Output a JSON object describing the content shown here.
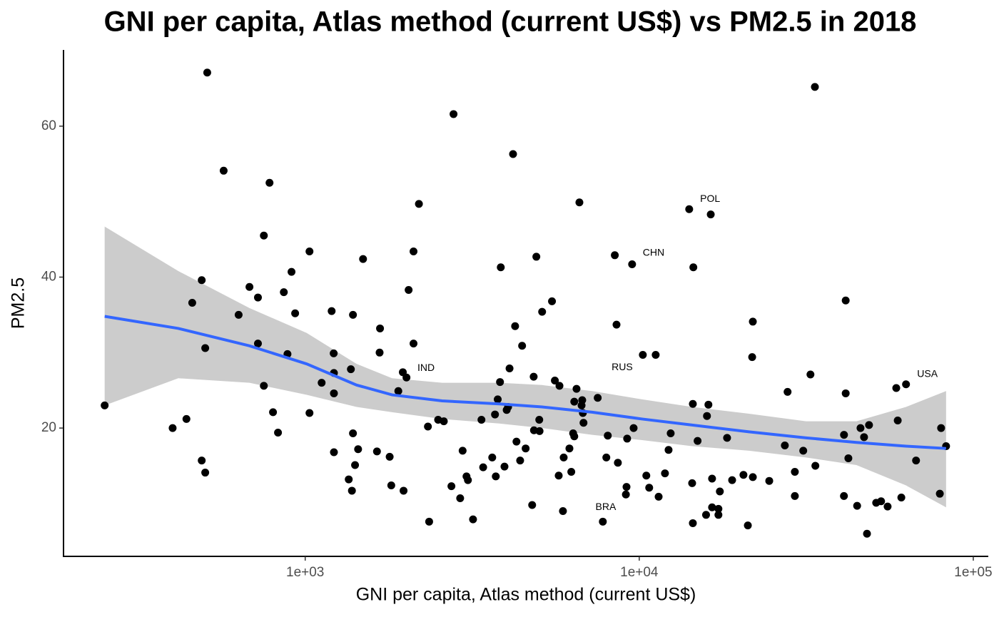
{
  "chart_data": {
    "type": "scatter",
    "title": "GNI per capita, Atlas method (current US$) vs PM2.5 in 2018",
    "x_label": "GNI per capita, Atlas method (current US$)",
    "y_label": "PM2.5",
    "log_x": true,
    "xlim": [
      189,
      110900
    ],
    "ylim": [
      3,
      70.1
    ],
    "xticks": [
      {
        "value": 1000,
        "label": "1e+03"
      },
      {
        "value": 10000,
        "label": "1e+04"
      },
      {
        "value": 100000,
        "label": "1e+05"
      }
    ],
    "yticks": [
      20,
      40,
      60
    ],
    "point_color": "#000000",
    "points": {
      "x": [
        251,
        509,
        570,
        782,
        752,
        490,
        459,
        502,
        632,
        681,
        722,
        722,
        910,
        863,
        933,
        885,
        752,
        1030,
        801,
        1030,
        401,
        441,
        829,
        490,
        502,
        1200,
        1217,
        1120,
        1219,
        1219,
        1370,
        1390,
        1490,
        1675,
        1670,
        2040,
        2110,
        2190,
        2110,
        1960,
        2010,
        1900,
        1219,
        1390,
        1440,
        1410,
        1350,
        1380,
        1640,
        1790,
        1810,
        1970,
        2330,
        2500,
        2600,
        2350,
        2780,
        2960,
        2740,
        2910,
        3040,
        3070,
        3180,
        3370,
        4190,
        3850,
        4250,
        4460,
        4090,
        3830,
        3770,
        3700,
        4010,
        4050,
        4920,
        5480,
        5120,
        4830,
        5020,
        4840,
        5030,
        4290,
        4570,
        4400,
        3950,
        3630,
        3410,
        3720,
        4780,
        5590,
        5770,
        6620,
        6490,
        6390,
        6750,
        6720,
        6780,
        6810,
        7510,
        6180,
        6390,
        6340,
        5940,
        5740,
        6260,
        5910,
        8450,
        9520,
        8550,
        10250,
        11200,
        8050,
        9620,
        9200,
        7970,
        8630,
        9160,
        9120,
        7780,
        10500,
        10710,
        11430,
        11940,
        12240,
        12420,
        14110,
        16370,
        14520,
        14470,
        14950,
        14400,
        14470,
        16110,
        15950,
        18320,
        16520,
        17430,
        16520,
        17260,
        15850,
        17260,
        18970,
        20510,
        21880,
        21140,
        21880,
        21780,
        24500,
        27800,
        27280,
        29230,
        29230,
        30970,
        32550,
        33560,
        33670,
        41500,
        41500,
        41020,
        42270,
        41000,
        44900,
        45960,
        48740,
        47100,
        48060,
        51200,
        52970,
        55400,
        58800,
        62900,
        59400,
        60900,
        67400,
        80100,
        82900,
        79400
      ],
      "y": [
        23.0,
        67.1,
        54.1,
        52.5,
        45.5,
        39.6,
        36.6,
        30.6,
        35.0,
        38.7,
        37.3,
        31.2,
        40.7,
        38.0,
        35.2,
        29.8,
        25.6,
        43.4,
        22.1,
        22.0,
        20.0,
        21.2,
        19.4,
        15.7,
        14.1,
        35.5,
        29.9,
        26.0,
        27.3,
        24.6,
        27.8,
        35.0,
        42.4,
        33.2,
        30.0,
        38.3,
        43.4,
        49.7,
        31.2,
        27.4,
        26.7,
        24.9,
        16.8,
        19.3,
        17.2,
        15.1,
        13.2,
        11.7,
        16.9,
        16.2,
        12.4,
        11.7,
        20.2,
        21.1,
        20.9,
        7.6,
        61.6,
        17.0,
        12.3,
        10.7,
        13.6,
        13.1,
        7.9,
        21.1,
        56.3,
        41.3,
        33.5,
        30.9,
        27.9,
        26.1,
        23.8,
        21.8,
        22.4,
        22.8,
        42.7,
        36.8,
        35.4,
        26.8,
        21.1,
        19.7,
        19.6,
        18.2,
        17.3,
        15.7,
        14.9,
        16.1,
        14.8,
        13.6,
        9.8,
        26.3,
        25.6,
        49.9,
        25.2,
        23.5,
        23.7,
        23.0,
        22.0,
        20.7,
        24.0,
        17.3,
        18.9,
        19.3,
        16.1,
        13.7,
        14.2,
        9.0,
        42.9,
        41.7,
        33.7,
        29.7,
        29.7,
        19.0,
        20.0,
        18.6,
        16.1,
        15.4,
        12.2,
        11.2,
        7.6,
        13.7,
        12.1,
        10.9,
        14.0,
        17.1,
        19.3,
        49.0,
        48.3,
        41.3,
        23.2,
        18.3,
        12.7,
        7.4,
        23.1,
        21.6,
        18.7,
        13.3,
        11.6,
        9.5,
        9.3,
        8.5,
        8.5,
        13.1,
        13.8,
        13.5,
        7.1,
        34.1,
        29.4,
        13.0,
        24.8,
        17.7,
        14.2,
        11.0,
        17.0,
        27.1,
        65.2,
        15.0,
        36.9,
        24.6,
        19.1,
        16.0,
        11.0,
        9.7,
        20.0,
        20.4,
        18.8,
        6.0,
        10.1,
        10.3,
        9.6,
        25.3,
        25.8,
        21.0,
        10.8,
        15.7,
        20.0,
        17.6,
        11.3
      ]
    },
    "smooth_color": "#3366ff",
    "ribbon_color": "#cccccc",
    "smooth": {
      "x": [
        251,
        417,
        681,
        1010,
        1425,
        1820,
        2570,
        3810,
        5120,
        7230,
        10200,
        14400,
        21300,
        31600,
        44700,
        62900,
        82900
      ],
      "y": [
        34.8,
        33.2,
        30.9,
        28.5,
        25.7,
        24.4,
        23.6,
        23.2,
        22.8,
        22.1,
        21.2,
        20.4,
        19.5,
        18.7,
        18.1,
        17.6,
        17.3
      ],
      "ymax": [
        46.7,
        40.8,
        35.9,
        32.6,
        28.5,
        26.6,
        26.0,
        26.0,
        25.7,
        24.9,
        23.8,
        22.8,
        21.9,
        20.9,
        20.9,
        22.8,
        24.9
      ],
      "ymin": [
        23.0,
        26.6,
        26.0,
        24.4,
        22.8,
        22.1,
        21.2,
        20.6,
        20.0,
        19.1,
        18.4,
        17.6,
        17.0,
        16.1,
        15.1,
        12.4,
        9.5
      ]
    },
    "annotations": [
      {
        "text": "POL",
        "x": 16300,
        "y": 50.3
      },
      {
        "text": "CHN",
        "x": 11040,
        "y": 43.2
      },
      {
        "text": "IND",
        "x": 2300,
        "y": 27.9
      },
      {
        "text": "RUS",
        "x": 8890,
        "y": 28.0
      },
      {
        "text": "USA",
        "x": 72900,
        "y": 27.1
      },
      {
        "text": "BRA",
        "x": 7940,
        "y": 9.5
      }
    ]
  }
}
